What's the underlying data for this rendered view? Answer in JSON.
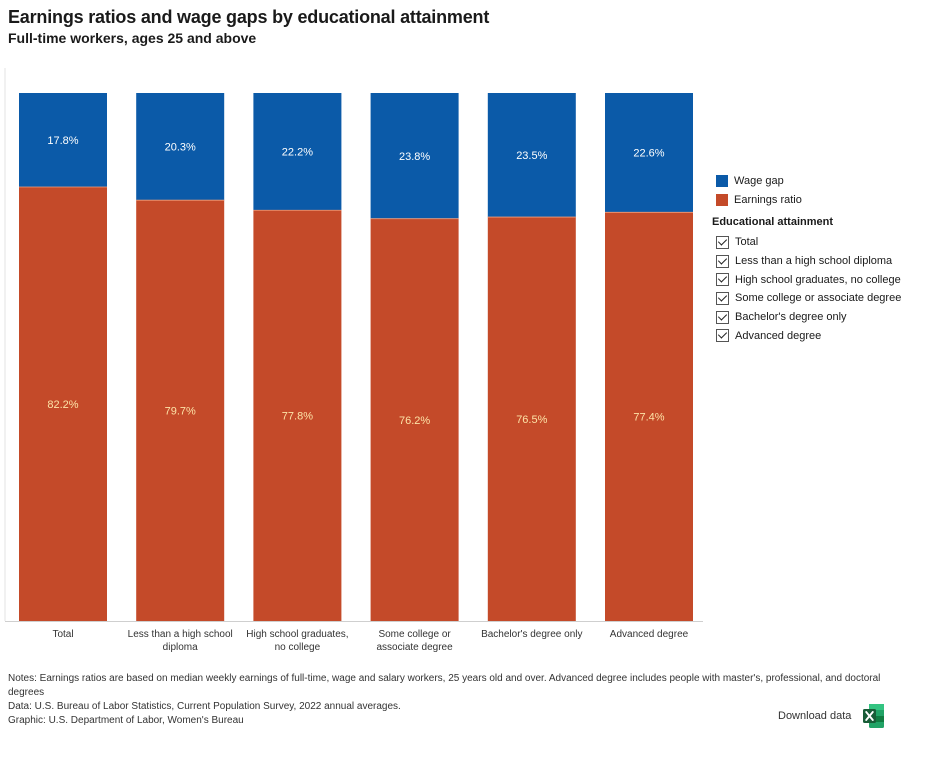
{
  "title": "Earnings ratios and wage gaps by educational attainment",
  "subtitle": "Full-time workers, ages 25 and above",
  "legend": {
    "items": [
      {
        "label": "Wage gap",
        "color": "#0b5aa8"
      },
      {
        "label": "Earnings ratio",
        "color": "#c44a29"
      }
    ]
  },
  "filters": {
    "heading": "Educational attainment",
    "items": [
      {
        "label": "Total",
        "checked": true
      },
      {
        "label": "Less than a high school diploma",
        "checked": true
      },
      {
        "label": "High school graduates, no college",
        "checked": true
      },
      {
        "label": "Some college or associate degree",
        "checked": true
      },
      {
        "label": "Bachelor's degree only",
        "checked": true
      },
      {
        "label": "Advanced degree",
        "checked": true
      }
    ]
  },
  "chart_data": {
    "type": "bar",
    "stacked": true,
    "normalized_percent": true,
    "categories": [
      [
        "Total"
      ],
      [
        "Less than a high school",
        "diploma"
      ],
      [
        "High school graduates,",
        "no college"
      ],
      [
        "Some college or",
        "associate degree"
      ],
      [
        "Bachelor's degree only"
      ],
      [
        "Advanced degree"
      ]
    ],
    "series": [
      {
        "name": "Earnings ratio",
        "color": "#c44a29",
        "values": [
          82.2,
          79.7,
          77.8,
          76.2,
          76.5,
          77.4
        ],
        "labels": [
          "82.2%",
          "79.7%",
          "77.8%",
          "76.2%",
          "76.5%",
          "77.4%"
        ]
      },
      {
        "name": "Wage gap",
        "color": "#0b5aa8",
        "values": [
          17.8,
          20.3,
          22.2,
          23.8,
          23.5,
          22.6
        ],
        "labels": [
          "17.8%",
          "20.3%",
          "22.2%",
          "23.8%",
          "23.5%",
          "22.6%"
        ]
      }
    ],
    "ylim": [
      0,
      100
    ],
    "grid": false,
    "legend_position": "right"
  },
  "notes": {
    "line1": "Notes: Earnings ratios are based on median weekly earnings of full-time, wage and salary workers, 25 years old and over. Advanced degree includes people with master's, professional, and doctoral degrees",
    "line2": "Data: U.S. Bureau of Labor Statistics, Current Population Survey, 2022 annual averages.",
    "line3": "Graphic: U.S. Department of Labor, Women's Bureau"
  },
  "download": {
    "label": "Download data",
    "icon": "excel-icon"
  }
}
